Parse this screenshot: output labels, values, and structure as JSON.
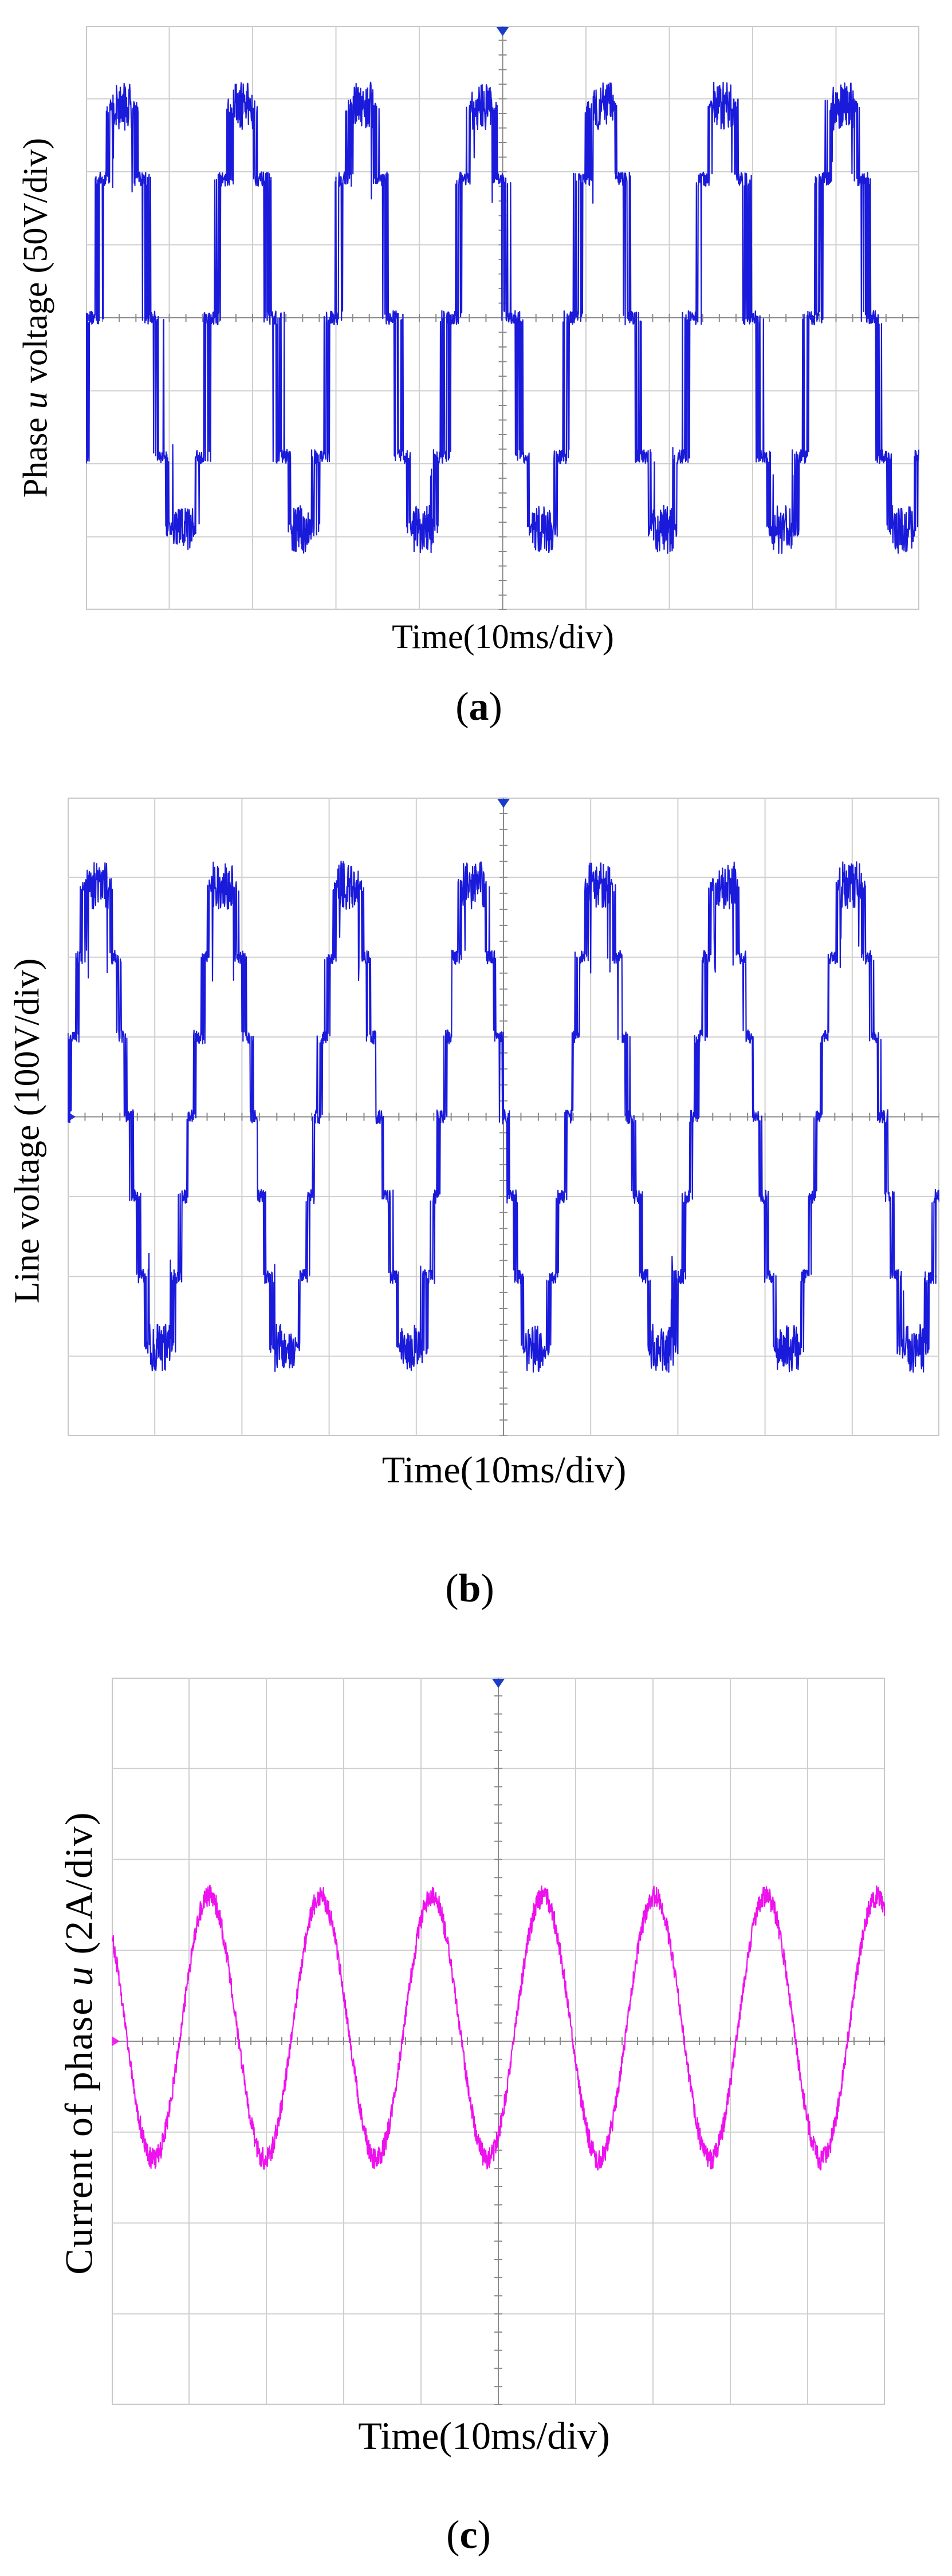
{
  "charts": {
    "a": {
      "caption_letter": "a",
      "ylabel_pre": "Phase ",
      "ylabel_var": "u",
      "ylabel_post": " voltage (50V/div)",
      "xlabel": "Time(10ms/div)",
      "trace_color": "#1a1adb"
    },
    "b": {
      "caption_letter": "b",
      "ylabel_pre": "Line voltage (100V/div)",
      "ylabel_var": "",
      "ylabel_post": "",
      "xlabel": "Time(10ms/div)",
      "trace_color": "#1a1adb"
    },
    "c": {
      "caption_letter": "c",
      "ylabel_pre": "Current of phase ",
      "ylabel_var": "u",
      "ylabel_post": " (2A/div)",
      "xlabel": "Time(10ms/div)",
      "trace_color": "#ee11ee"
    }
  },
  "chart_data": [
    {
      "type": "line",
      "ylabel": "Phase u voltage (50V/div)",
      "xlabel": "Time(10ms/div)",
      "x_divisions": 10,
      "y_divisions": 8,
      "grid": true,
      "units_x": "div (10 ms/div)",
      "units_y": "div (50 V/div)",
      "series": [
        {
          "waveform": "stepped multilevel (5-level) phase voltage with PWM ripple",
          "period_div": 1.44,
          "phase_div": 0.08,
          "levels_div": [
            -2.9,
            -1.9,
            0,
            1.9,
            2.9
          ],
          "ripple_div": 0.55,
          "trace_start_div": -0.2,
          "trace_end_div": 0.3,
          "x_start_div": 0,
          "x_end_div": 10
        }
      ]
    },
    {
      "type": "line",
      "ylabel": "Line voltage (100V/div)",
      "xlabel": "Time(10ms/div)",
      "x_divisions": 10,
      "y_divisions": 8,
      "grid": true,
      "units_x": "div (10 ms/div)",
      "units_y": "div (100 V/div)",
      "series": [
        {
          "waveform": "stepped multilevel line voltage with PWM ripple",
          "period_div": 1.44,
          "phase_div": 1.42,
          "levels_div": [
            -2.9,
            -2.0,
            -1.0,
            0,
            1.0,
            2.0,
            2.9
          ],
          "ripple_div": 0.5,
          "x_start_div": 0,
          "x_end_div": 10
        }
      ]
    },
    {
      "type": "line",
      "ylabel": "Current of phase u (2A/div)",
      "xlabel": "Time(10ms/div)",
      "x_divisions": 10,
      "y_divisions": 8,
      "grid": true,
      "units_x": "div (10 ms/div)",
      "units_y": "div (2 A/div)",
      "series": [
        {
          "waveform": "sinusoidal phase current with ripple",
          "period_div": 1.44,
          "phase_div": 0.9,
          "amplitude_div": 1.45,
          "offset_div": 0.15,
          "ripple_div": 0.12,
          "x_start_div": 0,
          "x_end_div": 10
        }
      ]
    }
  ]
}
